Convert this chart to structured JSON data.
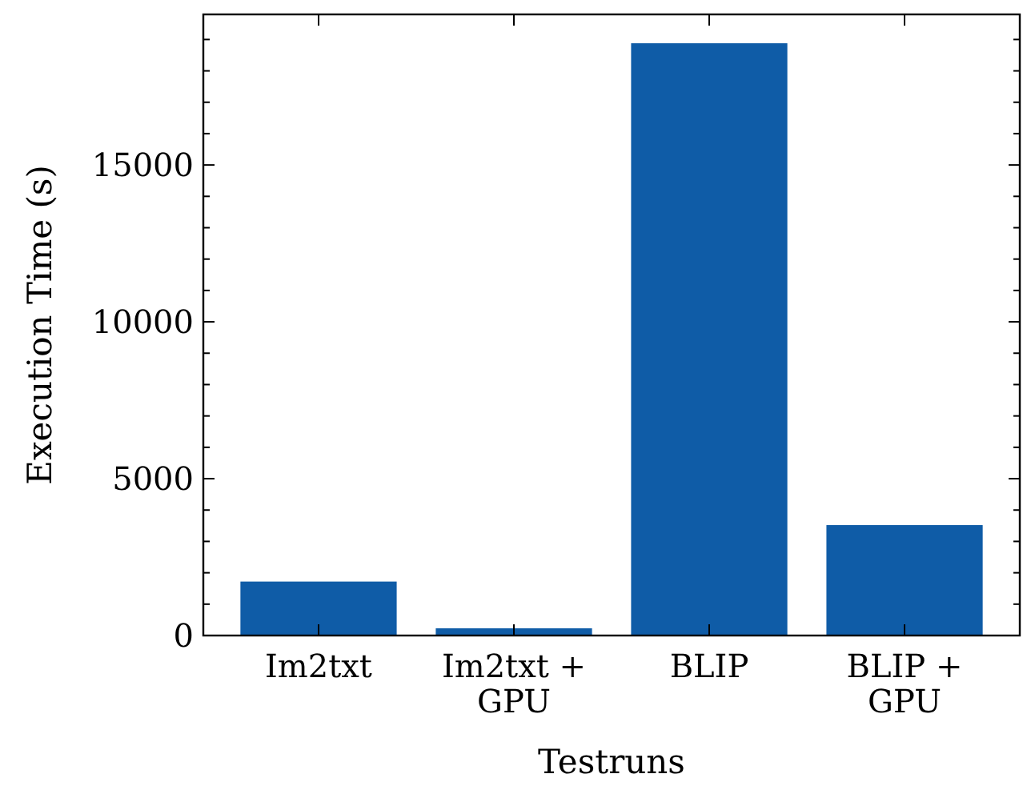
{
  "chart_data": {
    "type": "bar",
    "xlabel": "Testruns",
    "ylabel": "Execution Time (s)",
    "categories": [
      "Im2txt",
      "Im2txt + GPU",
      "BLIP",
      "BLIP + GPU"
    ],
    "values": [
      1720,
      230,
      18880,
      3520
    ],
    "color": "#0f5ca7",
    "ylim": [
      0,
      19800
    ],
    "yticks": [
      0,
      {
        "value": 1000,
        "label": null
      },
      {
        "value": 2000,
        "label": null
      },
      {
        "value": 3000,
        "label": null
      },
      {
        "value": 4000,
        "label": null
      },
      5000,
      {
        "value": 6000,
        "label": null
      },
      {
        "value": 7000,
        "label": null
      },
      {
        "value": 8000,
        "label": null
      },
      {
        "value": 9000,
        "label": null
      },
      10000,
      {
        "value": 11000,
        "label": null
      },
      {
        "value": 12000,
        "label": null
      },
      {
        "value": 13000,
        "label": null
      },
      {
        "value": 14000,
        "label": null
      },
      15000,
      {
        "value": 16000,
        "label": null
      },
      {
        "value": 17000,
        "label": null
      },
      {
        "value": 18000,
        "label": null
      },
      {
        "value": 19000,
        "label": null
      }
    ]
  }
}
